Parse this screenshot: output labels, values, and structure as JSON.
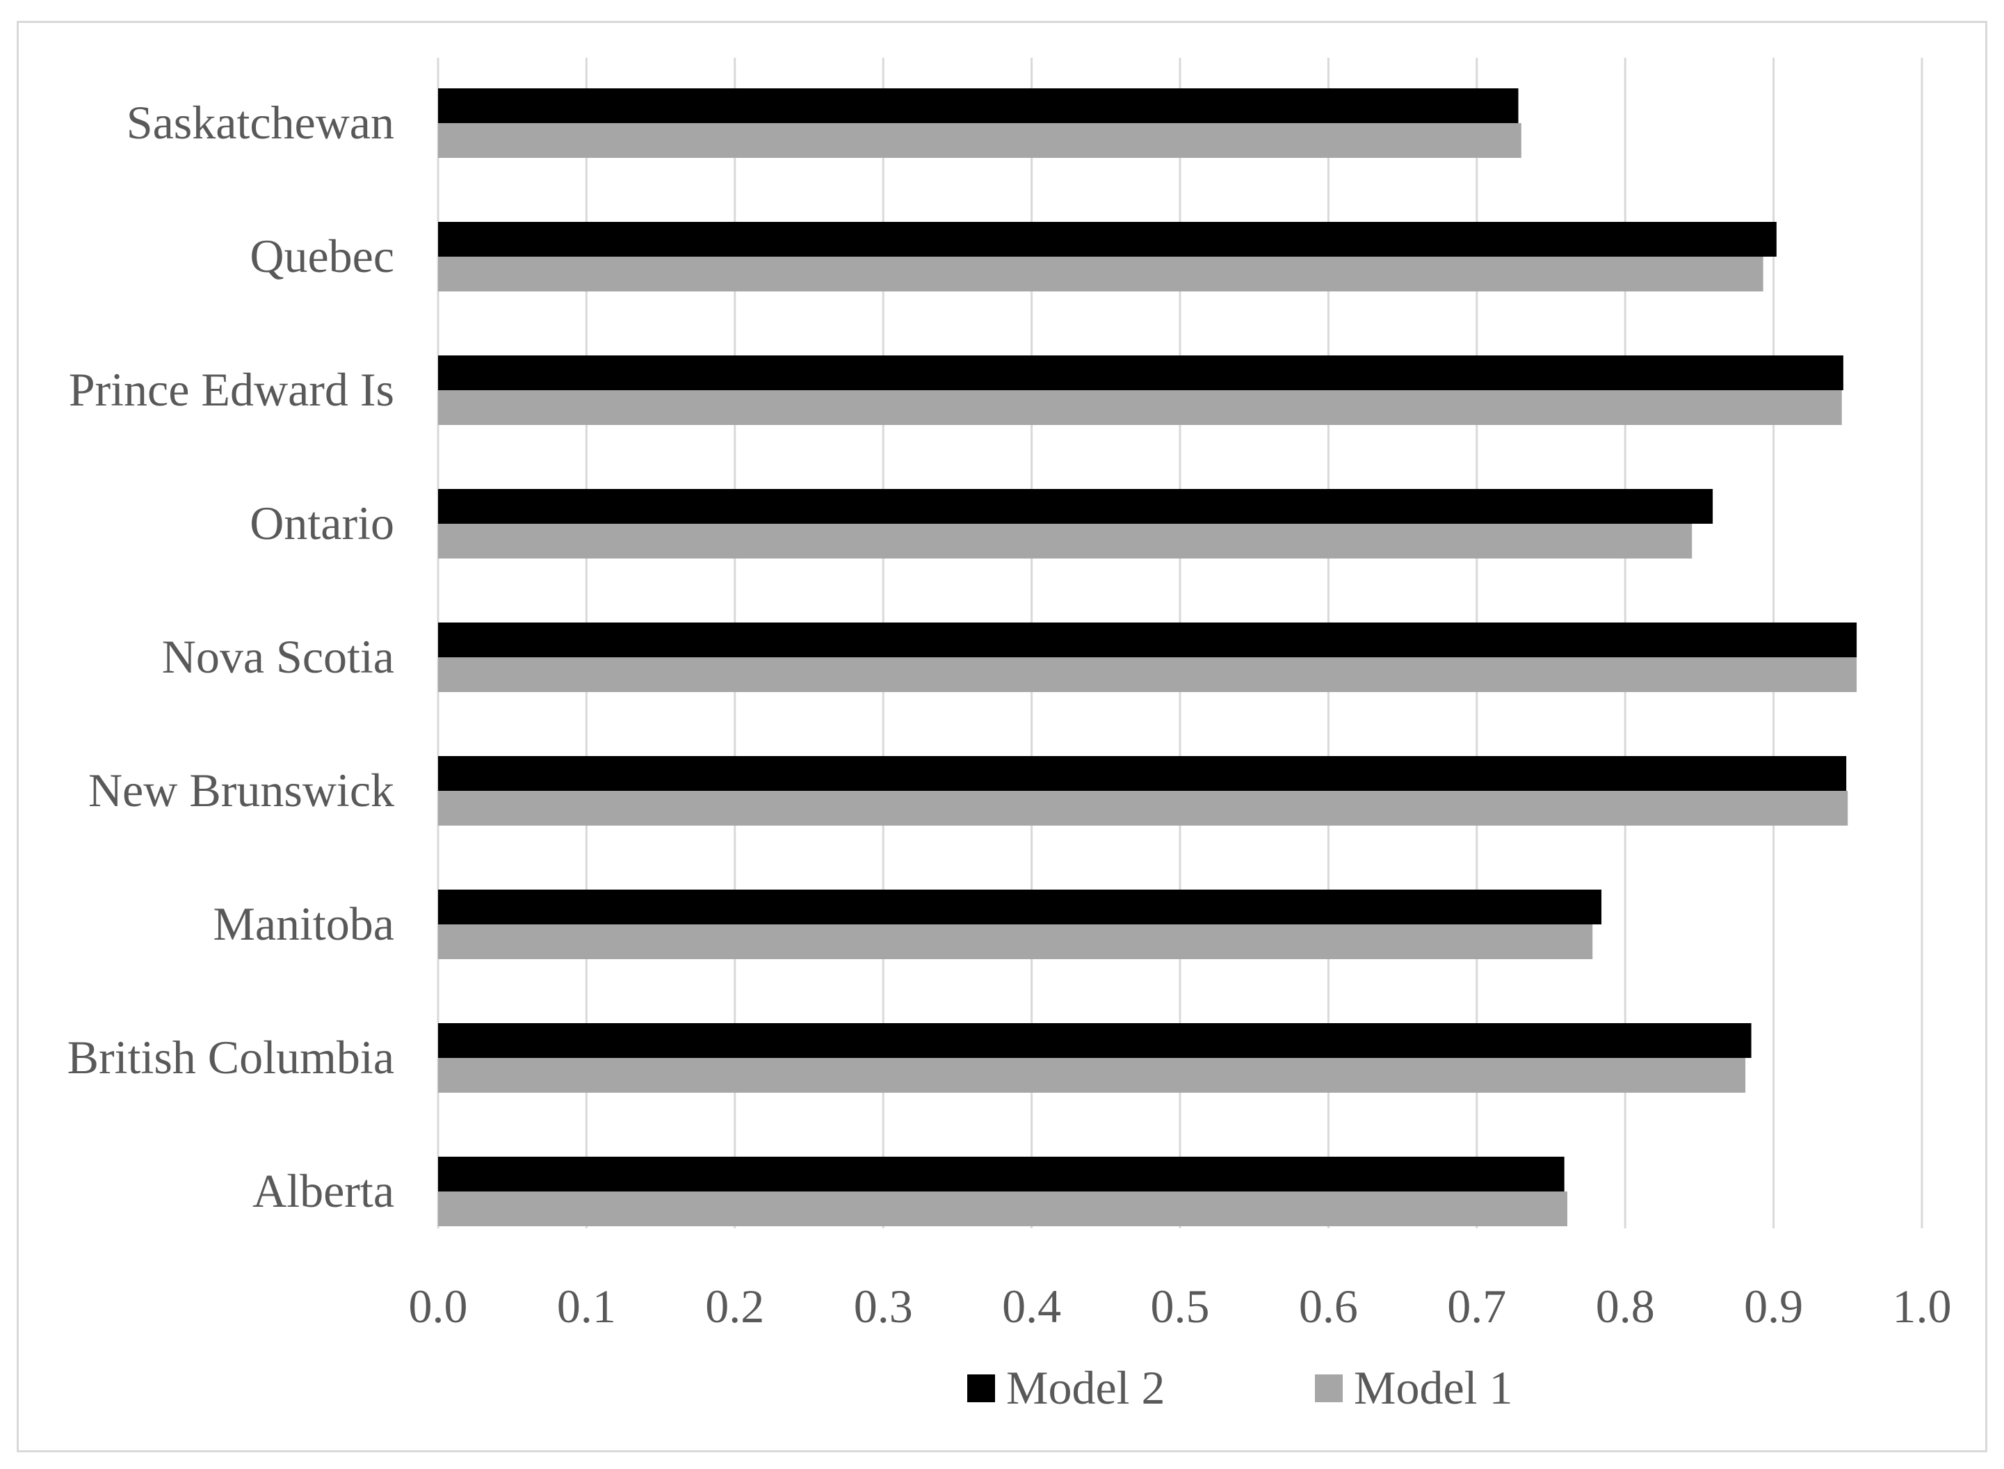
{
  "chart_data": {
    "type": "bar",
    "orientation": "horizontal",
    "categories": [
      "Alberta",
      "British Columbia",
      "Manitoba",
      "New Brunswick",
      "Nova Scotia",
      "Ontario",
      "Prince Edward Is",
      "Quebec",
      "Saskatchewan"
    ],
    "series": [
      {
        "name": "Model 2",
        "color": "#000000",
        "values": [
          0.759,
          0.885,
          0.784,
          0.949,
          0.956,
          0.859,
          0.947,
          0.902,
          0.728
        ]
      },
      {
        "name": "Model 1",
        "color": "#a6a6a6",
        "values": [
          0.761,
          0.881,
          0.778,
          0.95,
          0.956,
          0.845,
          0.946,
          0.893,
          0.73
        ]
      }
    ],
    "xlim": [
      0.0,
      1.0
    ],
    "xticks": [
      "0.0",
      "0.1",
      "0.2",
      "0.3",
      "0.4",
      "0.5",
      "0.6",
      "0.7",
      "0.8",
      "0.9",
      "1.0"
    ],
    "grid": "vertical",
    "legend_position": "bottom",
    "title": "",
    "xlabel": "",
    "ylabel": ""
  }
}
